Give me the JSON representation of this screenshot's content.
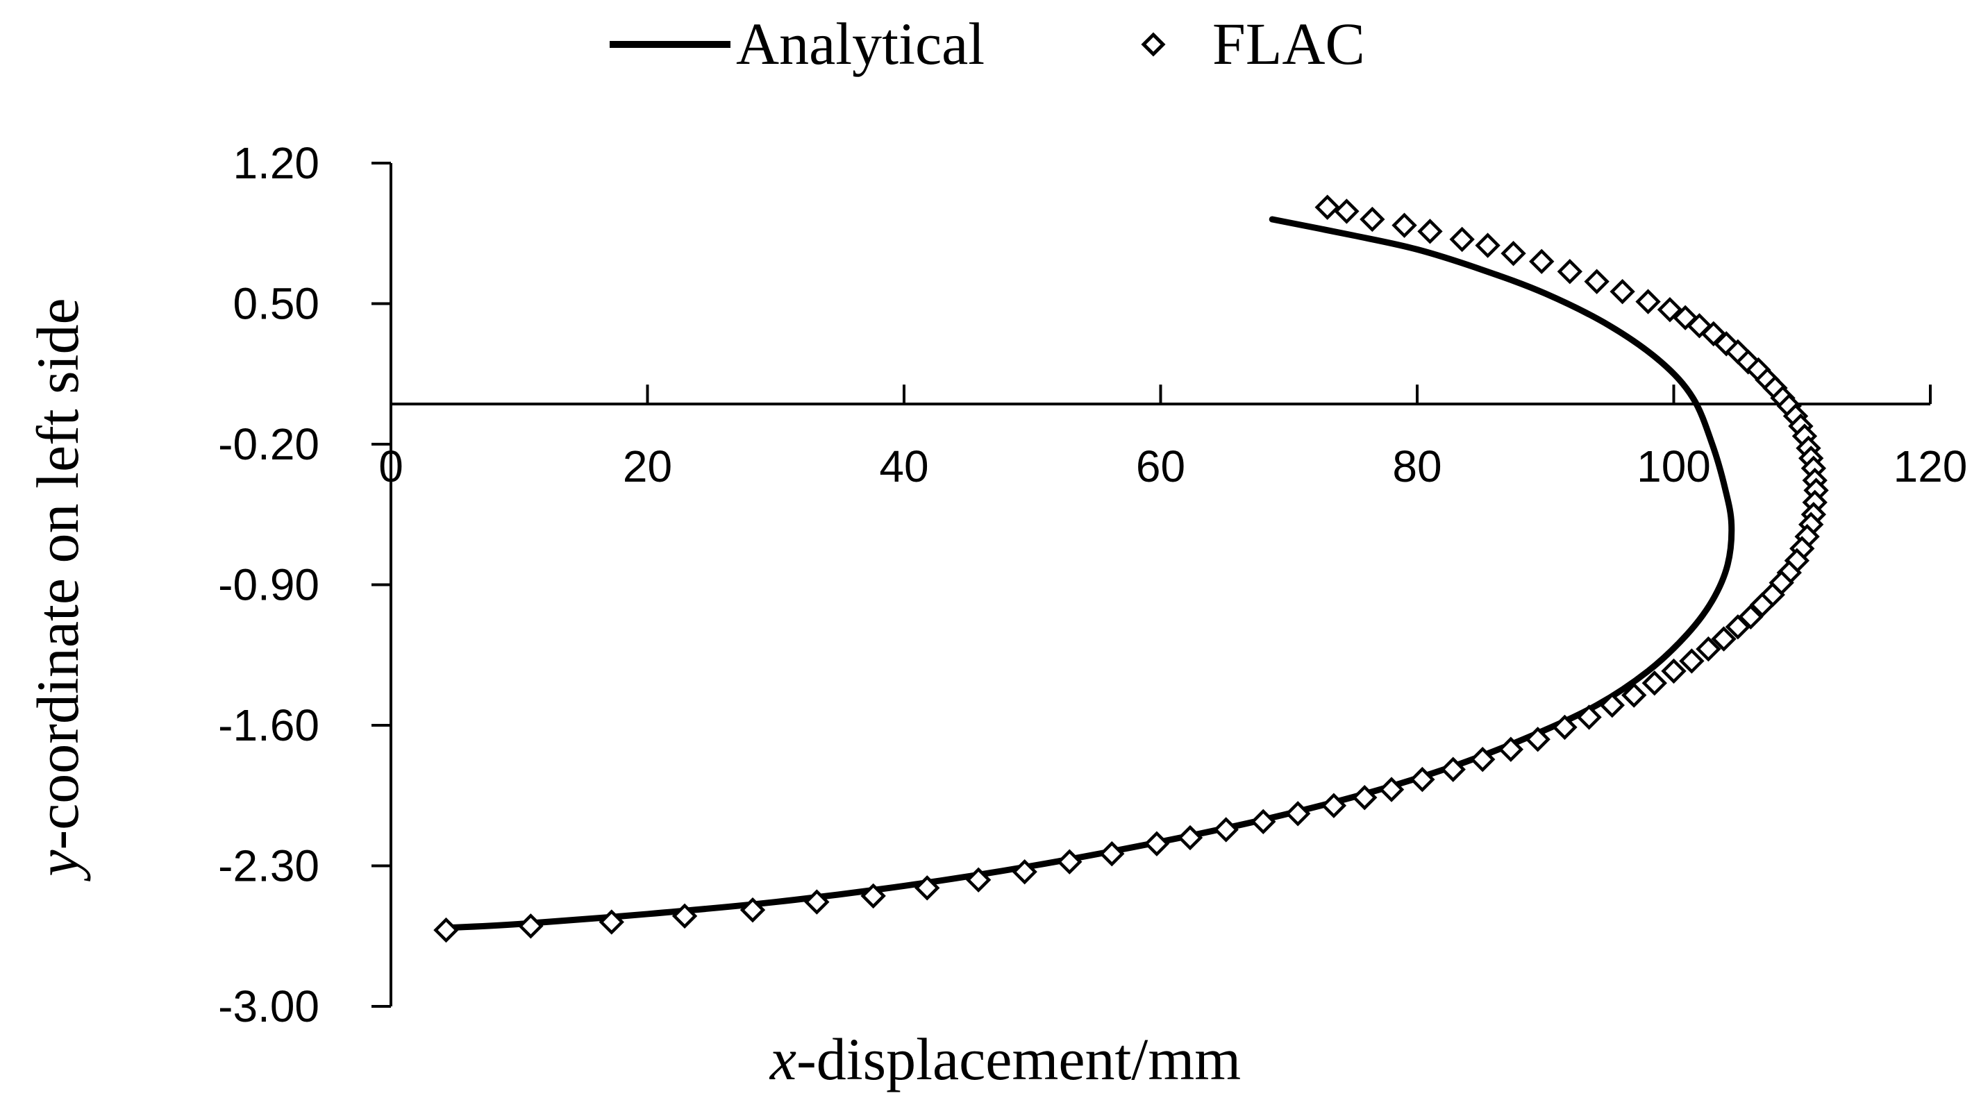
{
  "chart_data": {
    "type": "line",
    "title": "",
    "xlabel": {
      "italic": "x",
      "rest": "-displacement/mm"
    },
    "ylabel": {
      "italic": "y",
      "rest": "-coordinate on left side"
    },
    "xlim": [
      0,
      120
    ],
    "ylim": [
      -3.0,
      1.2
    ],
    "x_ticks": [
      0,
      20,
      40,
      60,
      80,
      100,
      120
    ],
    "x_tick_labels": [
      "0",
      "20",
      "40",
      "60",
      "80",
      "100",
      "120"
    ],
    "y_ticks": [
      1.2,
      0.5,
      -0.2,
      -0.9,
      -1.6,
      -2.3,
      -3.0
    ],
    "y_tick_labels": [
      "1.20",
      "0.50",
      "-0.20",
      "-0.90",
      "-1.60",
      "-2.30",
      "-3.00"
    ],
    "x_axis_crosses_y_at": 0.0,
    "grid": false,
    "legend_position": "top-center",
    "series": [
      {
        "name": "Analytical",
        "style": "solid-line",
        "color": "#000000",
        "points": [
          [
            68.7,
            0.92
          ],
          [
            75.0,
            0.84
          ],
          [
            80.0,
            0.77
          ],
          [
            85.0,
            0.67
          ],
          [
            90.0,
            0.55
          ],
          [
            95.0,
            0.39
          ],
          [
            99.0,
            0.21
          ],
          [
            101.5,
            0.03
          ],
          [
            103.0,
            -0.2
          ],
          [
            104.0,
            -0.42
          ],
          [
            104.5,
            -0.6
          ],
          [
            104.2,
            -0.8
          ],
          [
            103.0,
            -0.98
          ],
          [
            101.0,
            -1.15
          ],
          [
            98.0,
            -1.33
          ],
          [
            94.0,
            -1.5
          ],
          [
            89.0,
            -1.65
          ],
          [
            83.0,
            -1.8
          ],
          [
            76.0,
            -1.94
          ],
          [
            68.0,
            -2.07
          ],
          [
            60.0,
            -2.18
          ],
          [
            50.0,
            -2.3
          ],
          [
            40.0,
            -2.4
          ],
          [
            30.0,
            -2.48
          ],
          [
            20.0,
            -2.54
          ],
          [
            10.0,
            -2.59
          ],
          [
            4.0,
            -2.61
          ]
        ]
      },
      {
        "name": "FLAC",
        "style": "hollow-diamond-markers",
        "color": "#000000",
        "points": [
          [
            73.0,
            0.98
          ],
          [
            74.5,
            0.96
          ],
          [
            76.5,
            0.92
          ],
          [
            79.0,
            0.89
          ],
          [
            81.0,
            0.86
          ],
          [
            83.5,
            0.82
          ],
          [
            85.5,
            0.79
          ],
          [
            87.5,
            0.75
          ],
          [
            89.7,
            0.71
          ],
          [
            91.9,
            0.66
          ],
          [
            94.0,
            0.61
          ],
          [
            96.0,
            0.56
          ],
          [
            98.0,
            0.51
          ],
          [
            99.7,
            0.47
          ],
          [
            100.9,
            0.43
          ],
          [
            102.0,
            0.39
          ],
          [
            103.1,
            0.35
          ],
          [
            104.1,
            0.3
          ],
          [
            105.0,
            0.26
          ],
          [
            105.8,
            0.21
          ],
          [
            106.6,
            0.17
          ],
          [
            107.3,
            0.12
          ],
          [
            107.9,
            0.08
          ],
          [
            108.5,
            0.03
          ],
          [
            109.0,
            -0.01
          ],
          [
            109.5,
            -0.06
          ],
          [
            109.9,
            -0.11
          ],
          [
            110.2,
            -0.16
          ],
          [
            110.5,
            -0.22
          ],
          [
            110.7,
            -0.27
          ],
          [
            110.9,
            -0.32
          ],
          [
            111.0,
            -0.38
          ],
          [
            111.1,
            -0.43
          ],
          [
            111.0,
            -0.49
          ],
          [
            110.9,
            -0.55
          ],
          [
            110.7,
            -0.6
          ],
          [
            110.4,
            -0.66
          ],
          [
            110.0,
            -0.72
          ],
          [
            109.6,
            -0.78
          ],
          [
            109.0,
            -0.84
          ],
          [
            108.4,
            -0.89
          ],
          [
            107.7,
            -0.95
          ],
          [
            106.9,
            -1.0
          ],
          [
            106.0,
            -1.06
          ],
          [
            105.0,
            -1.11
          ],
          [
            103.9,
            -1.17
          ],
          [
            102.7,
            -1.22
          ],
          [
            101.4,
            -1.28
          ],
          [
            100.0,
            -1.33
          ],
          [
            98.5,
            -1.39
          ],
          [
            96.9,
            -1.45
          ],
          [
            95.2,
            -1.5
          ],
          [
            93.4,
            -1.56
          ],
          [
            91.5,
            -1.61
          ],
          [
            89.4,
            -1.67
          ],
          [
            87.3,
            -1.72
          ],
          [
            85.1,
            -1.77
          ],
          [
            82.8,
            -1.82
          ],
          [
            80.4,
            -1.87
          ],
          [
            78.0,
            -1.92
          ],
          [
            75.9,
            -1.96
          ],
          [
            73.5,
            -2.0
          ],
          [
            70.7,
            -2.04
          ],
          [
            68.0,
            -2.08
          ],
          [
            65.1,
            -2.12
          ],
          [
            62.3,
            -2.16
          ],
          [
            59.7,
            -2.19
          ],
          [
            56.2,
            -2.24
          ],
          [
            52.9,
            -2.28
          ],
          [
            49.4,
            -2.33
          ],
          [
            45.8,
            -2.37
          ],
          [
            41.8,
            -2.41
          ],
          [
            37.6,
            -2.45
          ],
          [
            33.2,
            -2.48
          ],
          [
            28.2,
            -2.52
          ],
          [
            22.9,
            -2.55
          ],
          [
            17.2,
            -2.58
          ],
          [
            10.9,
            -2.6
          ],
          [
            4.3,
            -2.62
          ]
        ]
      }
    ]
  }
}
